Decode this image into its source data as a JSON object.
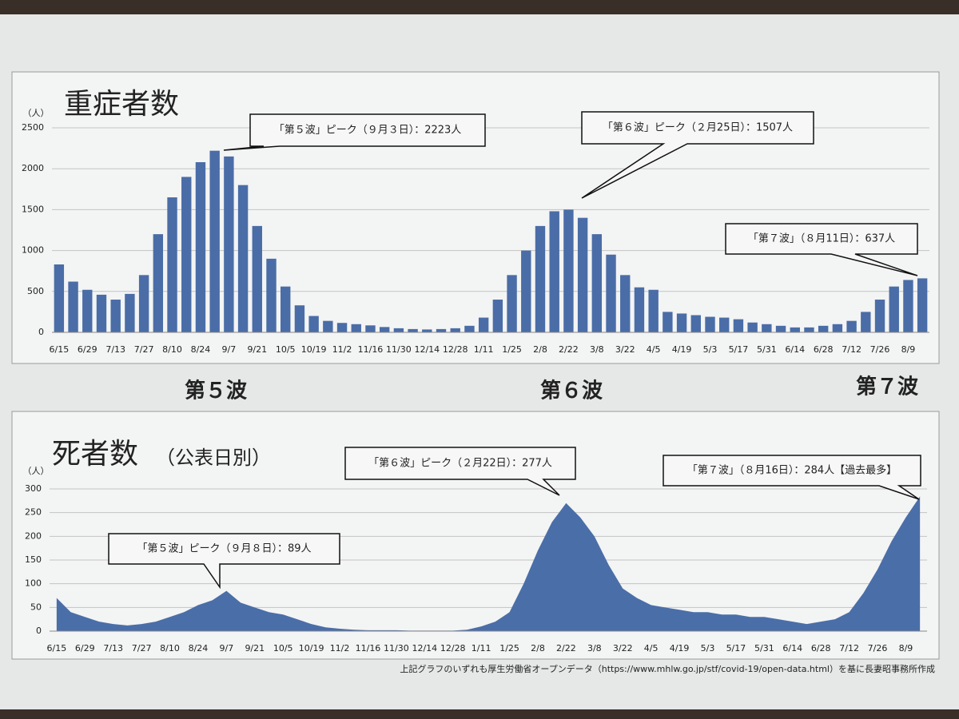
{
  "chart_data": [
    {
      "type": "bar",
      "title": "重症者数",
      "y_unit": "（人）",
      "color": "#4a6da7",
      "grid": true,
      "ylim": [
        0,
        2500
      ],
      "yticks": [
        0,
        500,
        1000,
        1500,
        2000,
        2500
      ],
      "categories": [
        "6/15",
        null,
        "6/29",
        null,
        "7/13",
        null,
        "7/27",
        null,
        "8/10",
        null,
        "8/24",
        null,
        "9/7",
        null,
        "9/21",
        null,
        "10/5",
        null,
        "10/19",
        null,
        "11/2",
        null,
        "11/16",
        null,
        "11/30",
        null,
        "12/14",
        null,
        "12/28",
        null,
        "1/11",
        null,
        "1/25",
        null,
        "2/8",
        null,
        "2/22",
        null,
        "3/8",
        null,
        "3/22",
        null,
        "4/5",
        null,
        "4/19",
        null,
        "5/3",
        null,
        "5/17",
        null,
        "5/31",
        null,
        "6/14",
        null,
        "6/28",
        null,
        "7/12",
        null,
        "7/26",
        null,
        "8/9",
        null
      ],
      "values": [
        830,
        620,
        520,
        460,
        400,
        470,
        700,
        1200,
        1650,
        1900,
        2080,
        2220,
        2150,
        1800,
        1300,
        900,
        560,
        330,
        200,
        140,
        115,
        100,
        85,
        65,
        50,
        40,
        35,
        40,
        50,
        80,
        180,
        400,
        700,
        1000,
        1300,
        1480,
        1500,
        1400,
        1200,
        950,
        700,
        550,
        520,
        250,
        230,
        210,
        190,
        180,
        160,
        120,
        100,
        80,
        60,
        60,
        80,
        100,
        140,
        250,
        400,
        560,
        640,
        660
      ],
      "annotations": [
        "「第５波」ピーク（９月３日）：2223人",
        "「第６波」ピーク（２月25日）：1507人",
        "「第７波」（８月11日）：637人"
      ]
    },
    {
      "type": "area",
      "title": "死者数",
      "subtitle": "（公表日別）",
      "y_unit": "（人）",
      "color": "#4a6ea8",
      "grid": true,
      "ylim": [
        0,
        300
      ],
      "yticks": [
        0,
        50,
        100,
        150,
        200,
        250,
        300
      ],
      "categories": [
        "6/15",
        null,
        "6/29",
        null,
        "7/13",
        null,
        "7/27",
        null,
        "8/10",
        null,
        "8/24",
        null,
        "9/7",
        null,
        "9/21",
        null,
        "10/5",
        null,
        "10/19",
        null,
        "11/2",
        null,
        "11/16",
        null,
        "11/30",
        null,
        "12/14",
        null,
        "12/28",
        null,
        "1/11",
        null,
        "1/25",
        null,
        "2/8",
        null,
        "2/22",
        null,
        "3/8",
        null,
        "3/22",
        null,
        "4/5",
        null,
        "4/19",
        null,
        "5/3",
        null,
        "5/17",
        null,
        "5/31",
        null,
        "6/14",
        null,
        "6/28",
        null,
        "7/12",
        null,
        "7/26",
        null,
        "8/9",
        null
      ],
      "values": [
        70,
        40,
        30,
        20,
        15,
        12,
        15,
        20,
        30,
        40,
        55,
        65,
        85,
        60,
        50,
        40,
        35,
        25,
        15,
        8,
        5,
        3,
        2,
        2,
        2,
        1,
        1,
        1,
        1,
        3,
        10,
        20,
        40,
        100,
        170,
        230,
        270,
        240,
        200,
        140,
        90,
        70,
        55,
        50,
        45,
        40,
        40,
        35,
        35,
        30,
        30,
        25,
        20,
        15,
        20,
        25,
        40,
        80,
        130,
        190,
        240,
        284
      ],
      "annotations": [
        "「第６波」ピーク（２月22日）：277人",
        "「第７波」（８月16日）：284人【過去最多】",
        "「第５波」ピーク（９月８日）：89人"
      ]
    }
  ],
  "wave_labels": [
    "第５波",
    "第６波",
    "第７波"
  ],
  "footnote": "上記グラフのいずれも厚生労働省オープンデータ（https://www.mhlw.go.jp/stf/covid-19/open-data.html）を基に長妻昭事務所作成"
}
